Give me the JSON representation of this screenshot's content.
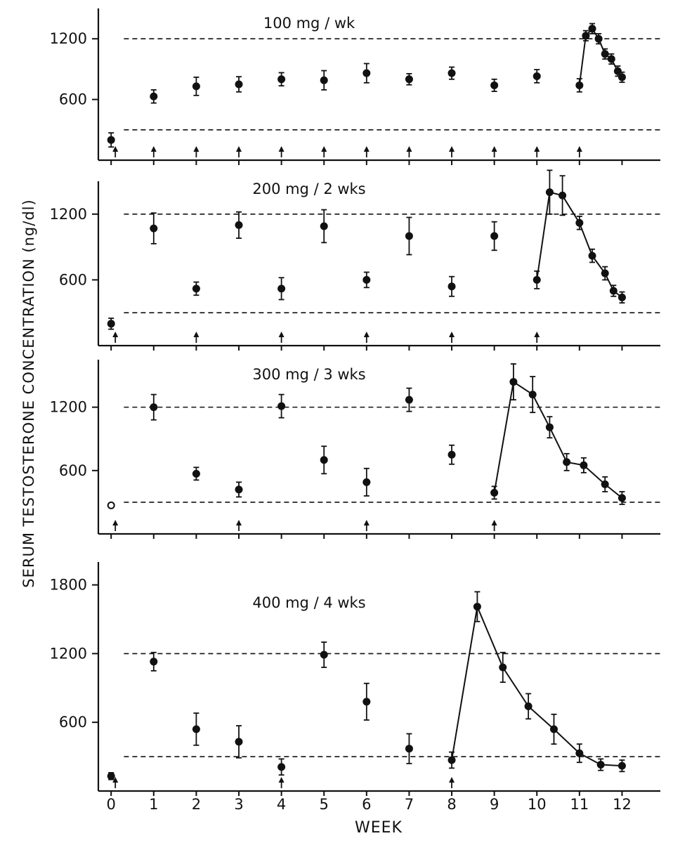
{
  "chart_data": {
    "type": "scatter",
    "ylabel": "SERUM TESTOSTERONE CONCENTRATION (ng/dl)",
    "xlabel": "WEEK",
    "x_ticks": [
      0,
      1,
      2,
      3,
      4,
      5,
      6,
      7,
      8,
      9,
      10,
      11,
      12
    ],
    "xlim": [
      -0.3,
      12.9
    ],
    "panels": [
      {
        "title": "100 mg / wk",
        "ylim": [
          0,
          1500
        ],
        "y_ticks": [
          600,
          1200
        ],
        "reference_lines": [
          1200,
          300
        ],
        "injection_weeks": [
          0,
          1,
          2,
          3,
          4,
          5,
          6,
          7,
          8,
          9,
          10,
          11
        ],
        "points": [
          {
            "x": 0,
            "y": 200,
            "err": 70
          },
          {
            "x": 1,
            "y": 630,
            "err": 65
          },
          {
            "x": 2,
            "y": 730,
            "err": 90
          },
          {
            "x": 3,
            "y": 750,
            "err": 75
          },
          {
            "x": 4,
            "y": 800,
            "err": 65
          },
          {
            "x": 5,
            "y": 790,
            "err": 95
          },
          {
            "x": 6,
            "y": 860,
            "err": 95
          },
          {
            "x": 7,
            "y": 800,
            "err": 55
          },
          {
            "x": 8,
            "y": 860,
            "err": 60
          },
          {
            "x": 9,
            "y": 740,
            "err": 60
          },
          {
            "x": 10,
            "y": 830,
            "err": 65
          },
          {
            "x": 11,
            "y": 740,
            "err": 65
          },
          {
            "x": 11.15,
            "y": 1230,
            "err": 50
          },
          {
            "x": 11.3,
            "y": 1300,
            "err": 50
          },
          {
            "x": 11.45,
            "y": 1200,
            "err": 50
          },
          {
            "x": 11.6,
            "y": 1050,
            "err": 50
          },
          {
            "x": 11.75,
            "y": 1000,
            "err": 50
          },
          {
            "x": 11.9,
            "y": 880,
            "err": 50
          },
          {
            "x": 12,
            "y": 820,
            "err": 50
          }
        ],
        "curve_start_index": 11
      },
      {
        "title": "200 mg / 2 wks",
        "ylim": [
          0,
          1500
        ],
        "y_ticks": [
          600,
          1200
        ],
        "reference_lines": [
          1200,
          300
        ],
        "injection_weeks": [
          0,
          2,
          4,
          6,
          8,
          10
        ],
        "points": [
          {
            "x": 0,
            "y": 200,
            "err": 50
          },
          {
            "x": 1,
            "y": 1070,
            "err": 140
          },
          {
            "x": 2,
            "y": 520,
            "err": 60
          },
          {
            "x": 3,
            "y": 1100,
            "err": 120
          },
          {
            "x": 4,
            "y": 520,
            "err": 100
          },
          {
            "x": 5,
            "y": 1090,
            "err": 150
          },
          {
            "x": 6,
            "y": 600,
            "err": 70
          },
          {
            "x": 7,
            "y": 1000,
            "err": 170
          },
          {
            "x": 8,
            "y": 540,
            "err": 90
          },
          {
            "x": 9,
            "y": 1000,
            "err": 130
          },
          {
            "x": 10,
            "y": 600,
            "err": 80
          },
          {
            "x": 10.3,
            "y": 1400,
            "err": 200
          },
          {
            "x": 10.6,
            "y": 1370,
            "err": 180
          },
          {
            "x": 11,
            "y": 1120,
            "err": 60
          },
          {
            "x": 11.3,
            "y": 820,
            "err": 60
          },
          {
            "x": 11.6,
            "y": 660,
            "err": 60
          },
          {
            "x": 11.8,
            "y": 500,
            "err": 50
          },
          {
            "x": 12,
            "y": 440,
            "err": 50
          }
        ],
        "curve_start_index": 10
      },
      {
        "title": "300 mg / 3 wks",
        "ylim": [
          0,
          1650
        ],
        "y_ticks": [
          600,
          1200
        ],
        "reference_lines": [
          1200,
          300
        ],
        "injection_weeks": [
          0,
          3,
          6,
          9
        ],
        "points": [
          {
            "x": 0,
            "y": 270,
            "err": 20,
            "open": true
          },
          {
            "x": 1,
            "y": 1200,
            "err": 120
          },
          {
            "x": 2,
            "y": 570,
            "err": 60
          },
          {
            "x": 3,
            "y": 420,
            "err": 70
          },
          {
            "x": 4,
            "y": 1210,
            "err": 110
          },
          {
            "x": 5,
            "y": 700,
            "err": 130
          },
          {
            "x": 6,
            "y": 490,
            "err": 130
          },
          {
            "x": 7,
            "y": 1270,
            "err": 110
          },
          {
            "x": 8,
            "y": 750,
            "err": 90
          },
          {
            "x": 9,
            "y": 390,
            "err": 60
          },
          {
            "x": 9.45,
            "y": 1440,
            "err": 170
          },
          {
            "x": 9.9,
            "y": 1320,
            "err": 170
          },
          {
            "x": 10.3,
            "y": 1010,
            "err": 100
          },
          {
            "x": 10.7,
            "y": 680,
            "err": 80
          },
          {
            "x": 11.1,
            "y": 650,
            "err": 70
          },
          {
            "x": 11.6,
            "y": 470,
            "err": 70
          },
          {
            "x": 12,
            "y": 340,
            "err": 60
          }
        ],
        "curve_start_index": 9
      },
      {
        "title": "400 mg / 4 wks",
        "ylim": [
          0,
          2000
        ],
        "y_ticks": [
          600,
          1200,
          1800
        ],
        "reference_lines": [
          1200,
          300
        ],
        "injection_weeks": [
          0,
          4,
          8
        ],
        "points": [
          {
            "x": 0,
            "y": 130,
            "err": 30
          },
          {
            "x": 1,
            "y": 1130,
            "err": 80
          },
          {
            "x": 2,
            "y": 540,
            "err": 140
          },
          {
            "x": 3,
            "y": 430,
            "err": 140
          },
          {
            "x": 4,
            "y": 210,
            "err": 70
          },
          {
            "x": 5,
            "y": 1190,
            "err": 110
          },
          {
            "x": 6,
            "y": 780,
            "err": 160
          },
          {
            "x": 7,
            "y": 370,
            "err": 130
          },
          {
            "x": 8,
            "y": 270,
            "err": 70
          },
          {
            "x": 8.6,
            "y": 1610,
            "err": 130
          },
          {
            "x": 9.2,
            "y": 1080,
            "err": 130
          },
          {
            "x": 9.8,
            "y": 740,
            "err": 110
          },
          {
            "x": 10.4,
            "y": 540,
            "err": 130
          },
          {
            "x": 11,
            "y": 330,
            "err": 80
          },
          {
            "x": 11.5,
            "y": 230,
            "err": 50
          },
          {
            "x": 12,
            "y": 220,
            "err": 50
          }
        ],
        "curve_start_index": 8
      }
    ]
  }
}
